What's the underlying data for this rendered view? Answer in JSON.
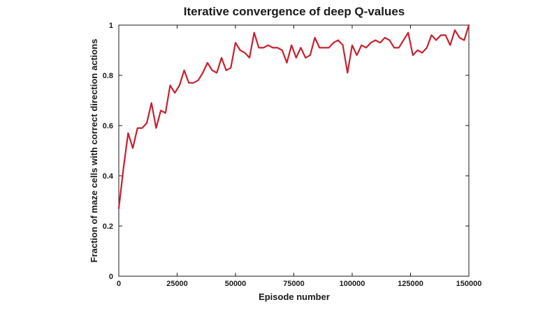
{
  "chart_data": {
    "type": "line",
    "title": "Iterative convergence of deep Q-values",
    "xlabel": "Episode number",
    "ylabel": "Fraction of maze cells with correct direction actions",
    "xlim": [
      0,
      150000
    ],
    "ylim": [
      0,
      1
    ],
    "grid": false,
    "legend": "none",
    "x_ticks": [
      0,
      25000,
      50000,
      75000,
      100000,
      125000,
      150000
    ],
    "x_tick_labels": [
      "0",
      "25000",
      "50000",
      "75000",
      "100000",
      "125000",
      "150000"
    ],
    "y_ticks": [
      0,
      0.2,
      0.4,
      0.6,
      0.8,
      1
    ],
    "y_tick_labels": [
      "0",
      "0.2",
      "0.4",
      "0.6",
      "0.8",
      "1"
    ],
    "line_color": "#c8202e",
    "series": [
      {
        "x": [
          0,
          2000,
          4000,
          6000,
          8000,
          10000,
          12000,
          14000,
          16000,
          18000,
          20000,
          22000,
          24000,
          26000,
          28000,
          30000,
          32000,
          34000,
          36000,
          38000,
          40000,
          42000,
          44000,
          46000,
          48000,
          50000,
          52000,
          54000,
          56000,
          58000,
          60000,
          62000,
          64000,
          66000,
          68000,
          70000,
          72000,
          74000,
          76000,
          78000,
          80000,
          82000,
          84000,
          86000,
          88000,
          90000,
          92000,
          94000,
          96000,
          98000,
          100000,
          102000,
          104000,
          106000,
          108000,
          110000,
          112000,
          114000,
          116000,
          118000,
          120000,
          122000,
          124000,
          126000,
          128000,
          130000,
          132000,
          134000,
          136000,
          138000,
          140000,
          142000,
          144000,
          146000,
          148000,
          150000
        ],
        "values": [
          0.27,
          0.43,
          0.57,
          0.51,
          0.59,
          0.59,
          0.61,
          0.69,
          0.59,
          0.66,
          0.65,
          0.76,
          0.73,
          0.76,
          0.82,
          0.77,
          0.77,
          0.78,
          0.81,
          0.85,
          0.82,
          0.81,
          0.87,
          0.82,
          0.83,
          0.93,
          0.9,
          0.89,
          0.87,
          0.97,
          0.91,
          0.91,
          0.92,
          0.91,
          0.91,
          0.9,
          0.85,
          0.92,
          0.87,
          0.91,
          0.87,
          0.88,
          0.95,
          0.91,
          0.91,
          0.91,
          0.93,
          0.94,
          0.92,
          0.81,
          0.92,
          0.88,
          0.92,
          0.91,
          0.93,
          0.94,
          0.93,
          0.95,
          0.94,
          0.91,
          0.91,
          0.94,
          0.97,
          0.88,
          0.9,
          0.89,
          0.91,
          0.96,
          0.94,
          0.96,
          0.96,
          0.92,
          0.98,
          0.95,
          0.94,
          1.0
        ]
      }
    ]
  }
}
